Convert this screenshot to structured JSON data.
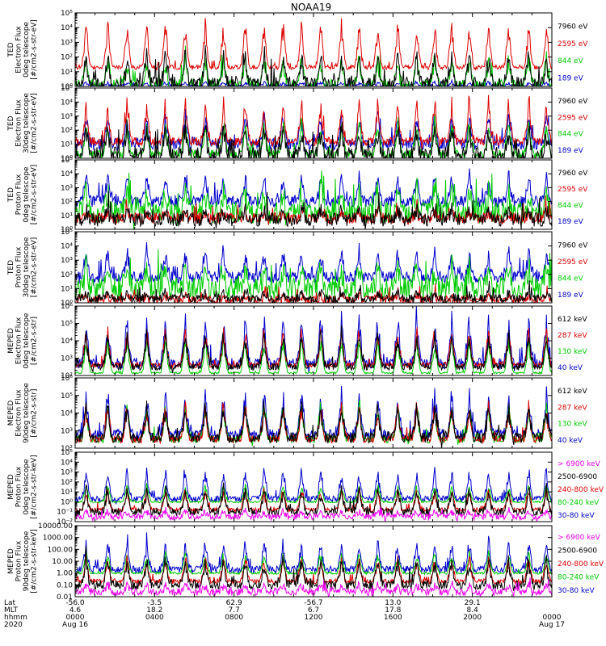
{
  "chart_data": {
    "type": "line",
    "title": "NOAA19",
    "x_axis": {
      "row_labels": [
        "Lat",
        "MLT",
        "hhmm",
        "2020"
      ],
      "ticks": [
        {
          "lat": "-56.0",
          "mlt": "4.6",
          "hhmm": "0000",
          "date": "Aug 16"
        },
        {
          "lat": "-3.5",
          "mlt": "18.2",
          "hhmm": "0400",
          "date": ""
        },
        {
          "lat": "62.9",
          "mlt": "7.7",
          "hhmm": "0800",
          "date": ""
        },
        {
          "lat": "-56.7",
          "mlt": "6.7",
          "hhmm": "1200",
          "date": ""
        },
        {
          "lat": "13.0",
          "mlt": "17.8",
          "hhmm": "1600",
          "date": ""
        },
        {
          "lat": "29.1",
          "mlt": "8.4",
          "hhmm": "2000",
          "date": ""
        },
        {
          "lat": "",
          "mlt": "",
          "hhmm": "0000",
          "date": "Aug 17"
        }
      ],
      "range_hours": [
        0,
        24
      ]
    },
    "panels": [
      {
        "ylabel_lines": [
          "TED",
          "Electron Flux",
          "0deg telescope",
          "[#/cm2-s-str-eV]"
        ],
        "scale": "log",
        "ylim_exp": [
          0,
          5
        ],
        "ticks": [
          "10⁰",
          "10¹",
          "10²",
          "10³",
          "10⁴",
          "10⁵"
        ],
        "tick_exps": [
          0,
          1,
          2,
          3,
          4,
          5
        ],
        "series": [
          {
            "name": "7960 eV",
            "color": "#000000",
            "base": 0.15,
            "peak": 2.6,
            "noise": 0.5
          },
          {
            "name": "2595 eV",
            "color": "#dd0000",
            "base": 1.3,
            "peak": 4.8,
            "noise": 0.15
          },
          {
            "name": "844 eV",
            "color": "#00cc00",
            "base": 0.1,
            "peak": 2.2,
            "noise": 0.4
          },
          {
            "name": "189 eV",
            "color": "#0000cc",
            "base": 0.05,
            "peak": 0.3,
            "noise": 0.1
          }
        ],
        "draw_order": [
          3,
          2,
          1,
          0
        ]
      },
      {
        "ylabel_lines": [
          "TED",
          "Electron Flux",
          "30deg telescope",
          "[#/cm2-s-str-eV]"
        ],
        "scale": "log",
        "ylim_exp": [
          0,
          5
        ],
        "ticks": [
          "10⁰",
          "10¹",
          "10²",
          "10³",
          "10⁴",
          "10⁵"
        ],
        "tick_exps": [
          0,
          1,
          2,
          3,
          4,
          5
        ],
        "series": [
          {
            "name": "7960 eV",
            "color": "#000000",
            "base": 0.2,
            "peak": 2.6,
            "noise": 0.6
          },
          {
            "name": "2595 eV",
            "color": "#dd0000",
            "base": 1.2,
            "peak": 4.4,
            "noise": 0.3
          },
          {
            "name": "844 eV",
            "color": "#00cc00",
            "base": 0.3,
            "peak": 3.0,
            "noise": 0.3
          },
          {
            "name": "189 eV",
            "color": "#0000cc",
            "base": 1.0,
            "peak": 3.4,
            "noise": 0.4
          }
        ],
        "draw_order": [
          3,
          2,
          1,
          0
        ]
      },
      {
        "ylabel_lines": [
          "TED",
          "Proton Flux",
          "0deg telescope",
          "[#/cm2-s-str-eV]"
        ],
        "scale": "log",
        "ylim_exp": [
          0,
          5
        ],
        "ticks": [
          "10⁰",
          "10¹",
          "10²",
          "10³",
          "10⁴",
          "10⁵"
        ],
        "tick_exps": [
          0,
          1,
          2,
          3,
          4,
          5
        ],
        "series": [
          {
            "name": "7960 eV",
            "color": "#000000",
            "base": 0.7,
            "peak": 1.5,
            "noise": 0.5
          },
          {
            "name": "2595 eV",
            "color": "#dd0000",
            "base": 0.8,
            "peak": 1.4,
            "noise": 0.4
          },
          {
            "name": "844 eV",
            "color": "#00cc00",
            "base": 1.2,
            "peak": 3.2,
            "noise": 0.8
          },
          {
            "name": "189 eV",
            "color": "#0000cc",
            "base": 2.0,
            "peak": 4.2,
            "noise": 0.4
          }
        ],
        "draw_order": [
          3,
          2,
          1,
          0
        ]
      },
      {
        "ylabel_lines": [
          "TED",
          "Proton Flux",
          "30deg telescope",
          "[#/cm2-s-str-eV]"
        ],
        "scale": "log",
        "ylim_exp": [
          0,
          5
        ],
        "ticks": [
          "10⁰",
          "10¹",
          "10²",
          "10³",
          "10⁴",
          "10⁵"
        ],
        "tick_exps": [
          0,
          1,
          2,
          3,
          4,
          5
        ],
        "series": [
          {
            "name": "7960 eV",
            "color": "#000000",
            "base": 0.3,
            "peak": 0.8,
            "noise": 0.3
          },
          {
            "name": "2595 eV",
            "color": "#dd0000",
            "base": 0.2,
            "peak": 0.6,
            "noise": 0.3
          },
          {
            "name": "844 eV",
            "color": "#00cc00",
            "base": 1.0,
            "peak": 3.0,
            "noise": 0.8
          },
          {
            "name": "189 eV",
            "color": "#0000cc",
            "base": 1.8,
            "peak": 4.0,
            "noise": 0.4
          }
        ],
        "draw_order": [
          3,
          2,
          1,
          0
        ]
      },
      {
        "ylabel_lines": [
          "MEPED",
          "Electron Flux",
          "0deg telescope",
          "[#/cm2-s-str]"
        ],
        "scale": "log",
        "ylim_exp": [
          2,
          6
        ],
        "ticks": [
          "10²",
          "10³",
          "10⁴",
          "10⁵",
          "10⁶"
        ],
        "tick_exps": [
          2,
          3,
          4,
          5,
          6
        ],
        "series": [
          {
            "name": "612 keV",
            "color": "#000000",
            "base": 2.5,
            "peak": 4.8,
            "noise": 0.2
          },
          {
            "name": "287 keV",
            "color": "#dd0000",
            "base": 2.6,
            "peak": 5.0,
            "noise": 0.15
          },
          {
            "name": "130 keV",
            "color": "#00cc00",
            "base": 2.15,
            "peak": 4.5,
            "noise": 0.05
          },
          {
            "name": "40 keV",
            "color": "#0000cc",
            "base": 2.7,
            "peak": 5.7,
            "noise": 0.3
          }
        ],
        "draw_order": [
          3,
          2,
          1,
          0
        ]
      },
      {
        "ylabel_lines": [
          "MEPED",
          "Electron Flux",
          "90deg telescope",
          "[#/cm2-s-str]"
        ],
        "scale": "log",
        "ylim_exp": [
          2,
          6
        ],
        "ticks": [
          "10²",
          "10³",
          "10⁴",
          "10⁵",
          "10⁶"
        ],
        "tick_exps": [
          2,
          3,
          4,
          5,
          6
        ],
        "series": [
          {
            "name": "612 keV",
            "color": "#000000",
            "base": 2.6,
            "peak": 4.8,
            "noise": 0.3
          },
          {
            "name": "287 keV",
            "color": "#dd0000",
            "base": 2.5,
            "peak": 4.8,
            "noise": 0.2
          },
          {
            "name": "130 keV",
            "color": "#00cc00",
            "base": 2.5,
            "peak": 4.8,
            "noise": 0.2
          },
          {
            "name": "40 keV",
            "color": "#0000cc",
            "base": 2.8,
            "peak": 5.5,
            "noise": 0.3
          }
        ],
        "draw_order": [
          3,
          2,
          1,
          0
        ]
      },
      {
        "ylabel_lines": [
          "MEPED",
          "Proton Flux",
          "0deg telescope",
          "[#/cm2-s-str-keV]"
        ],
        "scale": "log",
        "ylim_exp": [
          -2,
          5
        ],
        "ticks": [
          "10⁻²",
          "10⁻¹",
          "10⁰",
          "10¹",
          "10²",
          "10³",
          "10⁴",
          "10⁵"
        ],
        "tick_exps": [
          -2,
          -1,
          0,
          1,
          2,
          3,
          4,
          5
        ],
        "series": [
          {
            "name": "> 6900 keV",
            "color": "#ee00ee",
            "base": -1.5,
            "peak": -0.8,
            "noise": 0.3
          },
          {
            "name": "2500-6900",
            "color": "#000000",
            "base": -1.0,
            "peak": 1.8,
            "noise": 0.4
          },
          {
            "name": "240-800 keV",
            "color": "#dd0000",
            "base": -0.8,
            "peak": 1.5,
            "noise": 0.2
          },
          {
            "name": "80-240 keV",
            "color": "#00cc00",
            "base": 0.0,
            "peak": 2.0,
            "noise": 0.1
          },
          {
            "name": "30-80 keV",
            "color": "#0000cc",
            "base": 0.3,
            "peak": 3.6,
            "noise": 0.3
          }
        ],
        "draw_order": [
          4,
          3,
          2,
          1,
          0
        ]
      },
      {
        "ylabel_lines": [
          "MEPED",
          "Proton Flux",
          "90deg telescope",
          "[#/cm2-s-str-keV]"
        ],
        "scale": "log",
        "ylim_exp": [
          -2,
          4
        ],
        "ticks": [
          "0.01",
          "0.10",
          "1.00",
          "10.00",
          "100.00",
          "1000.00",
          "10000.00"
        ],
        "tick_exps": [
          -2,
          -1,
          0,
          1,
          2,
          3,
          4
        ],
        "series": [
          {
            "name": "> 6900 keV",
            "color": "#ee00ee",
            "base": -1.6,
            "peak": -0.8,
            "noise": 0.3
          },
          {
            "name": "2500-6900",
            "color": "#000000",
            "base": -1.0,
            "peak": 1.6,
            "noise": 0.4
          },
          {
            "name": "240-800 keV",
            "color": "#dd0000",
            "base": -0.7,
            "peak": 1.5,
            "noise": 0.2
          },
          {
            "name": "80-240 keV",
            "color": "#00cc00",
            "base": 0.0,
            "peak": 2.0,
            "noise": 0.1
          },
          {
            "name": "30-80 keV",
            "color": "#0000cc",
            "base": 0.3,
            "peak": 3.0,
            "noise": 0.3
          }
        ],
        "draw_order": [
          4,
          3,
          2,
          1,
          0
        ]
      }
    ]
  }
}
